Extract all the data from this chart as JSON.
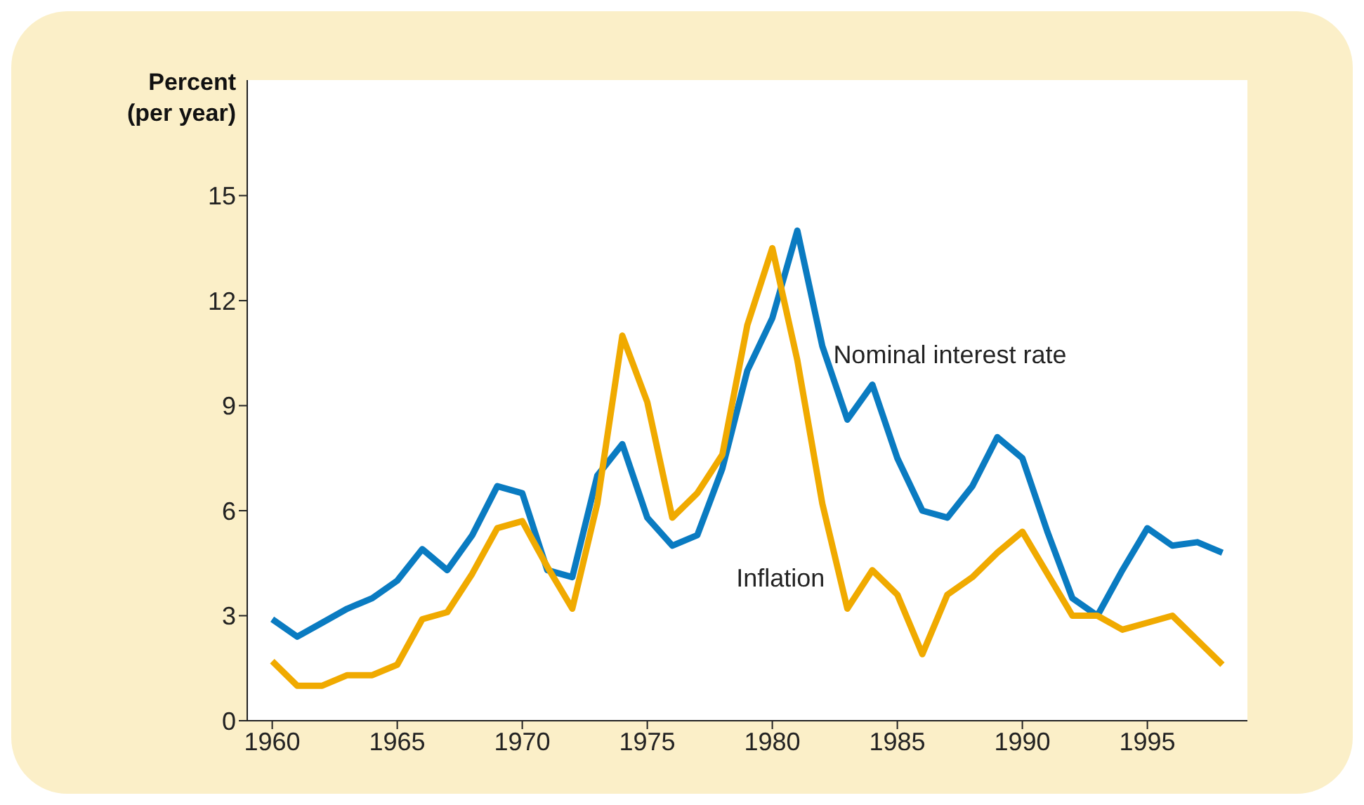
{
  "chart_data": {
    "type": "line",
    "ylabel": "Percent\n(per year)",
    "x": [
      1960,
      1961,
      1962,
      1963,
      1964,
      1965,
      1966,
      1967,
      1968,
      1969,
      1970,
      1971,
      1972,
      1973,
      1974,
      1975,
      1976,
      1977,
      1978,
      1979,
      1980,
      1981,
      1982,
      1983,
      1984,
      1985,
      1986,
      1987,
      1988,
      1989,
      1990,
      1991,
      1992,
      1993,
      1994,
      1995,
      1996,
      1997,
      1998
    ],
    "series": [
      {
        "name": "Nominal interest rate",
        "color": "#0a7bc1",
        "values": [
          2.9,
          2.4,
          2.8,
          3.2,
          3.5,
          4.0,
          4.9,
          4.3,
          5.3,
          6.7,
          6.5,
          4.3,
          4.1,
          7.0,
          7.9,
          5.8,
          5.0,
          5.3,
          7.2,
          10.0,
          11.5,
          14.0,
          10.7,
          8.6,
          9.6,
          7.5,
          6.0,
          5.8,
          6.7,
          8.1,
          7.5,
          5.4,
          3.5,
          3.0,
          4.3,
          5.5,
          5.0,
          5.1,
          4.8
        ]
      },
      {
        "name": "Inflation",
        "color": "#f0aa00",
        "values": [
          1.7,
          1.0,
          1.0,
          1.3,
          1.3,
          1.6,
          2.9,
          3.1,
          4.2,
          5.5,
          5.7,
          4.4,
          3.2,
          6.2,
          11.0,
          9.1,
          5.8,
          6.5,
          7.6,
          11.3,
          13.5,
          10.3,
          6.2,
          3.2,
          4.3,
          3.6,
          1.9,
          3.6,
          4.1,
          4.8,
          5.4,
          4.2,
          3.0,
          3.0,
          2.6,
          2.8,
          3.0,
          2.3,
          1.6
        ]
      }
    ],
    "xlim": [
      1959,
      1999
    ],
    "xticks": [
      1960,
      1965,
      1970,
      1975,
      1980,
      1985,
      1990,
      1995
    ],
    "ylim": [
      0,
      18.3
    ],
    "yticks": [
      0,
      3,
      6,
      9,
      12,
      15
    ],
    "grid": false,
    "legend": false,
    "marker": "none",
    "line_style": "solid"
  }
}
